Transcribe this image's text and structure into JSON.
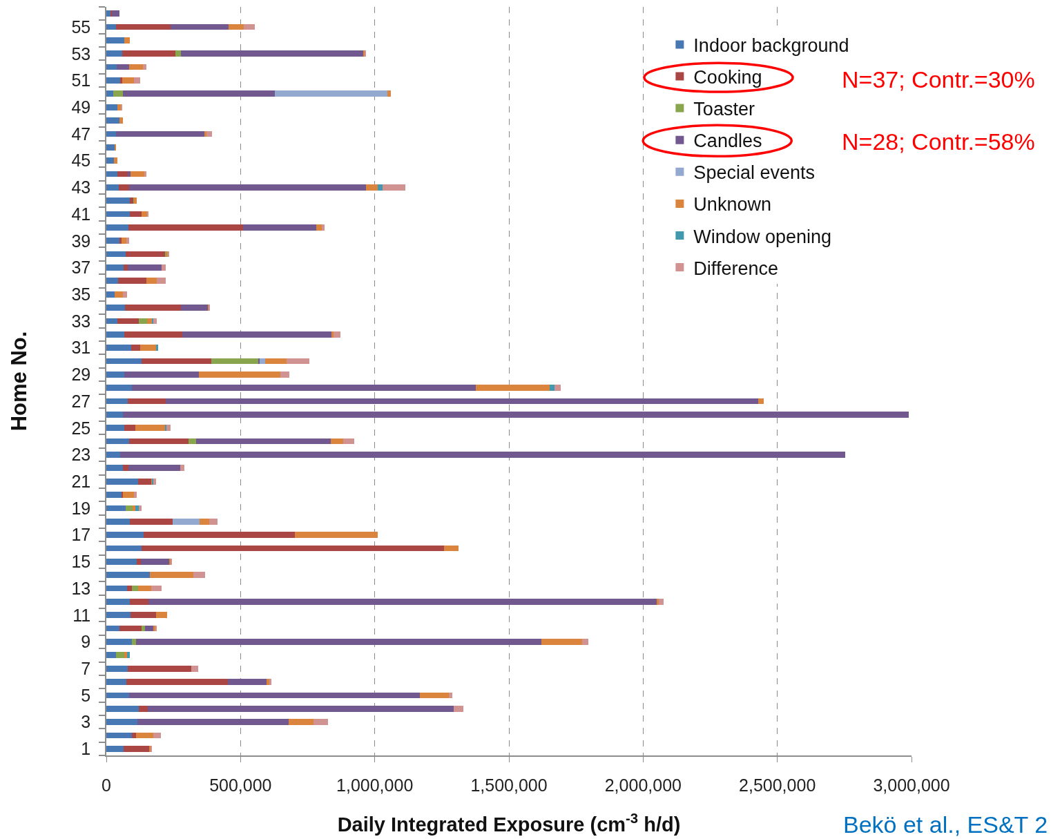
{
  "chart_data": {
    "type": "bar",
    "orientation": "horizontal",
    "stacked": true,
    "xlabel": "Daily Integrated Exposure (cm$^{-3}$ h/d)",
    "ylabel": "Home No.",
    "categories": [
      null,
      "55",
      null,
      "53",
      null,
      "51",
      null,
      "49",
      null,
      "47",
      null,
      "45",
      null,
      "43",
      null,
      "41",
      null,
      "39",
      null,
      "37",
      null,
      "35",
      null,
      "33",
      null,
      "31",
      null,
      "29",
      null,
      "27",
      null,
      "25",
      null,
      "23",
      null,
      "21",
      null,
      "19",
      null,
      "17",
      null,
      "15",
      null,
      "13",
      null,
      "11",
      null,
      "9",
      null,
      "7",
      null,
      "5",
      null,
      "3",
      null,
      "1"
    ],
    "xlim": [
      0,
      3000000
    ],
    "xticks": [
      0,
      {
        "value": 500000,
        "label": "500,000"
      },
      {
        "value": 1000000,
        "label": "1,000,000"
      },
      {
        "value": 1500000,
        "label": "1,500,000"
      },
      {
        "value": 2000000,
        "label": "2,000,000"
      },
      {
        "value": 2500000,
        "label": "2,500,000"
      },
      {
        "value": 3000000,
        "label": "3,000,000"
      }
    ],
    "grid": "x",
    "legend": "top right",
    "annotations": [
      "N=37; Contr.=30%",
      "N=28; Contr.=58%",
      "Bekö et al., ES&T 2"
    ],
    "series": [
      {
        "name": "Indoor background",
        "color": "#4878b4",
        "values": [
          15000,
          36000,
          66000,
          58000,
          38000,
          52000,
          26000,
          42000,
          50000,
          35000,
          32000,
          29000,
          41000,
          46000,
          87000,
          87000,
          83000,
          50000,
          71000,
          64000,
          44000,
          30000,
          70000,
          40000,
          68000,
          93000,
          132000,
          68000,
          96000,
          79000,
          62000,
          68000,
          84000,
          52000,
          62000,
          119000,
          57000,
          71000,
          88000,
          140000,
          132000,
          113000,
          163000,
          77000,
          88000,
          90000,
          49000,
          94000,
          36000,
          80000,
          74000,
          86000,
          120000,
          116000,
          94000,
          65000
        ]
      },
      {
        "name": "Cooking",
        "color": "#aa4643",
        "values": [
          6000,
          204000,
          null,
          200000,
          null,
          8000,
          null,
          null,
          null,
          null,
          null,
          null,
          40000,
          40000,
          14000,
          45000,
          427000,
          6000,
          149000,
          16000,
          106000,
          null,
          208000,
          80000,
          216000,
          34000,
          259000,
          null,
          null,
          143000,
          null,
          40000,
          222000,
          null,
          21000,
          49000,
          5000,
          null,
          160000,
          563000,
          1127000,
          16000,
          null,
          19000,
          70000,
          94000,
          83000,
          null,
          null,
          236000,
          380000,
          null,
          34000,
          null,
          16000,
          97000
        ]
      },
      {
        "name": "Toaster",
        "color": "#89a54e",
        "values": [
          null,
          null,
          null,
          21000,
          null,
          null,
          35000,
          null,
          null,
          null,
          null,
          null,
          null,
          null,
          2000,
          null,
          null,
          null,
          3000,
          null,
          null,
          null,
          null,
          32000,
          null,
          null,
          175000,
          null,
          null,
          null,
          null,
          null,
          29000,
          null,
          null,
          null,
          null,
          27000,
          null,
          null,
          null,
          null,
          null,
          22000,
          null,
          null,
          12000,
          16000,
          31000,
          null,
          null,
          null,
          null,
          null,
          null,
          null
        ]
      },
      {
        "name": "Candles",
        "color": "#71588f",
        "values": [
          28000,
          215000,
          null,
          677000,
          46000,
          null,
          568000,
          null,
          null,
          331000,
          null,
          null,
          9000,
          881000,
          null,
          null,
          273000,
          null,
          null,
          125000,
          null,
          null,
          101000,
          null,
          557000,
          null,
          6000,
          277000,
          1281000,
          2207000,
          2928000,
          null,
          500000,
          2702000,
          192000,
          null,
          null,
          null,
          null,
          null,
          null,
          107000,
          null,
          null,
          1893000,
          null,
          32000,
          1510000,
          null,
          null,
          143000,
          1082000,
          1140000,
          564000,
          null,
          null
        ]
      },
      {
        "name": "Special events",
        "color": "#93a9cf",
        "values": [
          null,
          null,
          null,
          null,
          null,
          null,
          417000,
          null,
          null,
          null,
          null,
          null,
          null,
          null,
          null,
          null,
          null,
          null,
          null,
          null,
          null,
          null,
          null,
          null,
          null,
          null,
          20000,
          null,
          null,
          null,
          null,
          null,
          null,
          null,
          null,
          null,
          null,
          null,
          100000,
          null,
          null,
          null,
          null,
          null,
          null,
          null,
          null,
          null,
          null,
          null,
          null,
          null,
          null,
          null,
          null,
          null
        ]
      },
      {
        "name": "Unknown",
        "color": "#db843d",
        "values": [
          null,
          58000,
          22000,
          8000,
          52000,
          44000,
          13000,
          11000,
          11000,
          8000,
          5000,
          12000,
          54000,
          44000,
          11000,
          21000,
          19000,
          19000,
          7000,
          null,
          38000,
          31000,
          3000,
          20000,
          5000,
          60000,
          80000,
          304000,
          275000,
          21000,
          null,
          113000,
          48000,
          null,
          null,
          3000,
          41000,
          11000,
          36000,
          307000,
          54000,
          4000,
          161000,
          50000,
          8000,
          42000,
          8000,
          154000,
          11000,
          null,
          11000,
          109000,
          null,
          91000,
          64000,
          4000
        ]
      },
      {
        "name": "Window opening",
        "color": "#4198af",
        "values": [
          null,
          null,
          null,
          null,
          null,
          null,
          null,
          null,
          null,
          null,
          null,
          null,
          null,
          18000,
          null,
          null,
          null,
          null,
          null,
          null,
          null,
          null,
          null,
          3000,
          null,
          5000,
          null,
          null,
          18000,
          null,
          null,
          3000,
          null,
          null,
          null,
          5000,
          null,
          12000,
          null,
          null,
          null,
          null,
          null,
          null,
          null,
          null,
          null,
          null,
          9000,
          null,
          null,
          null,
          null,
          null,
          null,
          null
        ]
      },
      {
        "name": "Difference",
        "color": "#d19392",
        "values": [
          null,
          40000,
          null,
          3000,
          13000,
          21000,
          null,
          6000,
          null,
          20000,
          null,
          null,
          5000,
          85000,
          null,
          2000,
          10000,
          9000,
          5000,
          15000,
          33000,
          16000,
          3000,
          12000,
          27000,
          null,
          85000,
          34000,
          24000,
          null,
          null,
          14000,
          40000,
          null,
          16000,
          9000,
          11000,
          11000,
          29000,
          null,
          null,
          3000,
          45000,
          37000,
          18000,
          null,
          3000,
          22000,
          null,
          26000,
          8000,
          12000,
          35000,
          56000,
          30000,
          3000
        ]
      }
    ]
  }
}
